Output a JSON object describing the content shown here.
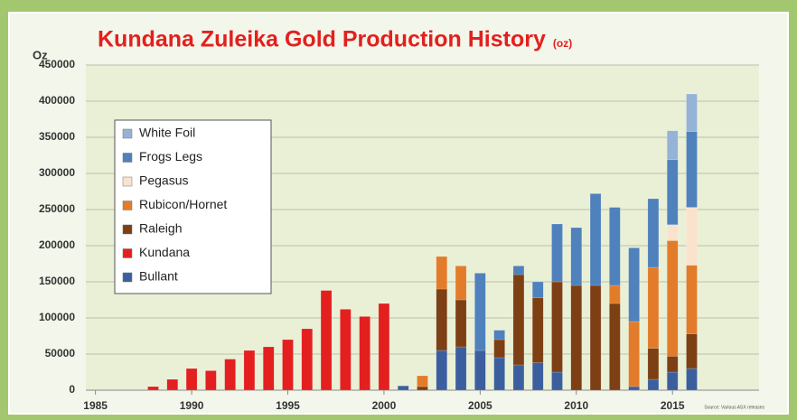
{
  "chart_data": {
    "type": "stacked-bar",
    "title": "Kundana Zuleika Gold Production History",
    "title_unit": "(oz)",
    "ylabel": "Oz",
    "source": "Source: Various ASX releases",
    "x": [
      1988,
      1989,
      1990,
      1991,
      1992,
      1993,
      1994,
      1995,
      1996,
      1997,
      1998,
      1999,
      2000,
      2001,
      2002,
      2003,
      2004,
      2005,
      2006,
      2007,
      2008,
      2009,
      2010,
      2011,
      2012,
      2013,
      2014,
      2015,
      2016
    ],
    "xlim": [
      1984.5,
      2019.5
    ],
    "xticks": [
      1985,
      1990,
      1995,
      2000,
      2005,
      2010,
      2015
    ],
    "ylim": [
      0,
      450000
    ],
    "yticks": [
      0,
      50000,
      100000,
      150000,
      200000,
      250000,
      300000,
      350000,
      400000,
      450000
    ],
    "grid": true,
    "legend": "upper-left",
    "series": [
      {
        "name": "Bullant",
        "color": "#3b5f9e",
        "values": [
          null,
          null,
          null,
          null,
          null,
          null,
          null,
          null,
          null,
          null,
          null,
          null,
          null,
          6000,
          null,
          55000,
          60000,
          55000,
          45000,
          35000,
          38000,
          25000,
          null,
          null,
          null,
          5000,
          15000,
          25000,
          30000
        ]
      },
      {
        "name": "Kundana",
        "color": "#e3201f",
        "values": [
          5000,
          15000,
          30000,
          27000,
          43000,
          55000,
          60000,
          70000,
          85000,
          138000,
          112000,
          102000,
          120000,
          null,
          null,
          null,
          null,
          null,
          null,
          null,
          null,
          null,
          null,
          null,
          null,
          null,
          null,
          null,
          null
        ]
      },
      {
        "name": "Raleigh",
        "color": "#7d3f14",
        "values": [
          null,
          null,
          null,
          null,
          null,
          null,
          null,
          null,
          null,
          null,
          null,
          null,
          null,
          null,
          5000,
          85000,
          65000,
          null,
          25000,
          125000,
          90000,
          125000,
          145000,
          145000,
          120000,
          null,
          43000,
          22000,
          48000
        ]
      },
      {
        "name": "Rubicon/Hornet",
        "color": "#e27c2a",
        "values": [
          null,
          null,
          null,
          null,
          null,
          null,
          null,
          null,
          null,
          null,
          null,
          null,
          null,
          null,
          15000,
          45000,
          47000,
          null,
          null,
          null,
          null,
          null,
          null,
          null,
          25000,
          90000,
          112000,
          160000,
          95000
        ]
      },
      {
        "name": "Pegasus",
        "color": "#fbe2cc",
        "values": [
          null,
          null,
          null,
          null,
          null,
          null,
          null,
          null,
          null,
          null,
          null,
          null,
          null,
          null,
          null,
          null,
          null,
          null,
          null,
          null,
          null,
          null,
          null,
          null,
          null,
          null,
          null,
          22000,
          80000
        ]
      },
      {
        "name": "Frogs Legs",
        "color": "#4f81bd",
        "values": [
          null,
          null,
          null,
          null,
          null,
          null,
          null,
          null,
          null,
          null,
          null,
          null,
          null,
          null,
          null,
          null,
          null,
          107000,
          13000,
          12000,
          22000,
          80000,
          80000,
          127000,
          108000,
          102000,
          95000,
          90000,
          105000
        ]
      },
      {
        "name": "White Foil",
        "color": "#95b3d7",
        "values": [
          null,
          null,
          null,
          null,
          null,
          null,
          null,
          null,
          null,
          null,
          null,
          null,
          null,
          null,
          null,
          null,
          null,
          null,
          null,
          null,
          null,
          null,
          null,
          null,
          null,
          null,
          null,
          40000,
          52000
        ]
      }
    ]
  }
}
